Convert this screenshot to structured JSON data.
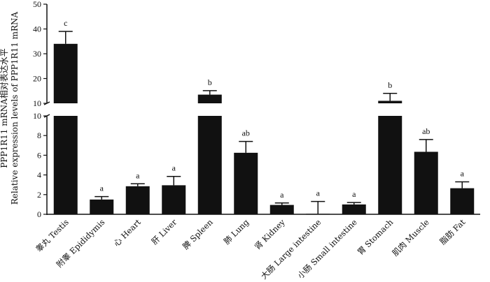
{
  "chart_data": {
    "type": "bar",
    "ylabel_lines": [
      "PPP1R11 mRNA相对表达水平",
      "Relative expression levels of PPP1R11 mRNA"
    ],
    "axis_break": true,
    "lower_ylim": [
      0,
      10
    ],
    "upper_ylim": [
      10,
      50
    ],
    "lower_ticks": [
      "0",
      "2",
      "4",
      "6",
      "8",
      "10"
    ],
    "upper_ticks": [
      "10",
      "20",
      "30",
      "40",
      "50"
    ],
    "categories": [
      "睾丸 Testis",
      "附睾 Epididymis",
      "心 Heart",
      "肝 Liver",
      "脾 Spleen",
      "肺 Lung",
      "肾 Kidney",
      "大肠 Large intestine",
      "小肠 Small intestine",
      "胃 Stomach",
      "肌肉 Muscle",
      "脂肪 Fat"
    ],
    "values": [
      34.0,
      1.5,
      2.85,
      2.95,
      13.5,
      6.25,
      0.95,
      0.05,
      1.0,
      11.0,
      6.35,
      2.65
    ],
    "errors": [
      5.0,
      0.3,
      0.25,
      0.9,
      1.6,
      1.15,
      0.2,
      1.25,
      0.2,
      3.0,
      1.25,
      0.65
    ],
    "significance": [
      "c",
      "a",
      "a",
      "a",
      "b",
      "ab",
      "a",
      "a",
      "a",
      "b",
      "ab",
      "a"
    ],
    "bar_color": "#111111"
  }
}
